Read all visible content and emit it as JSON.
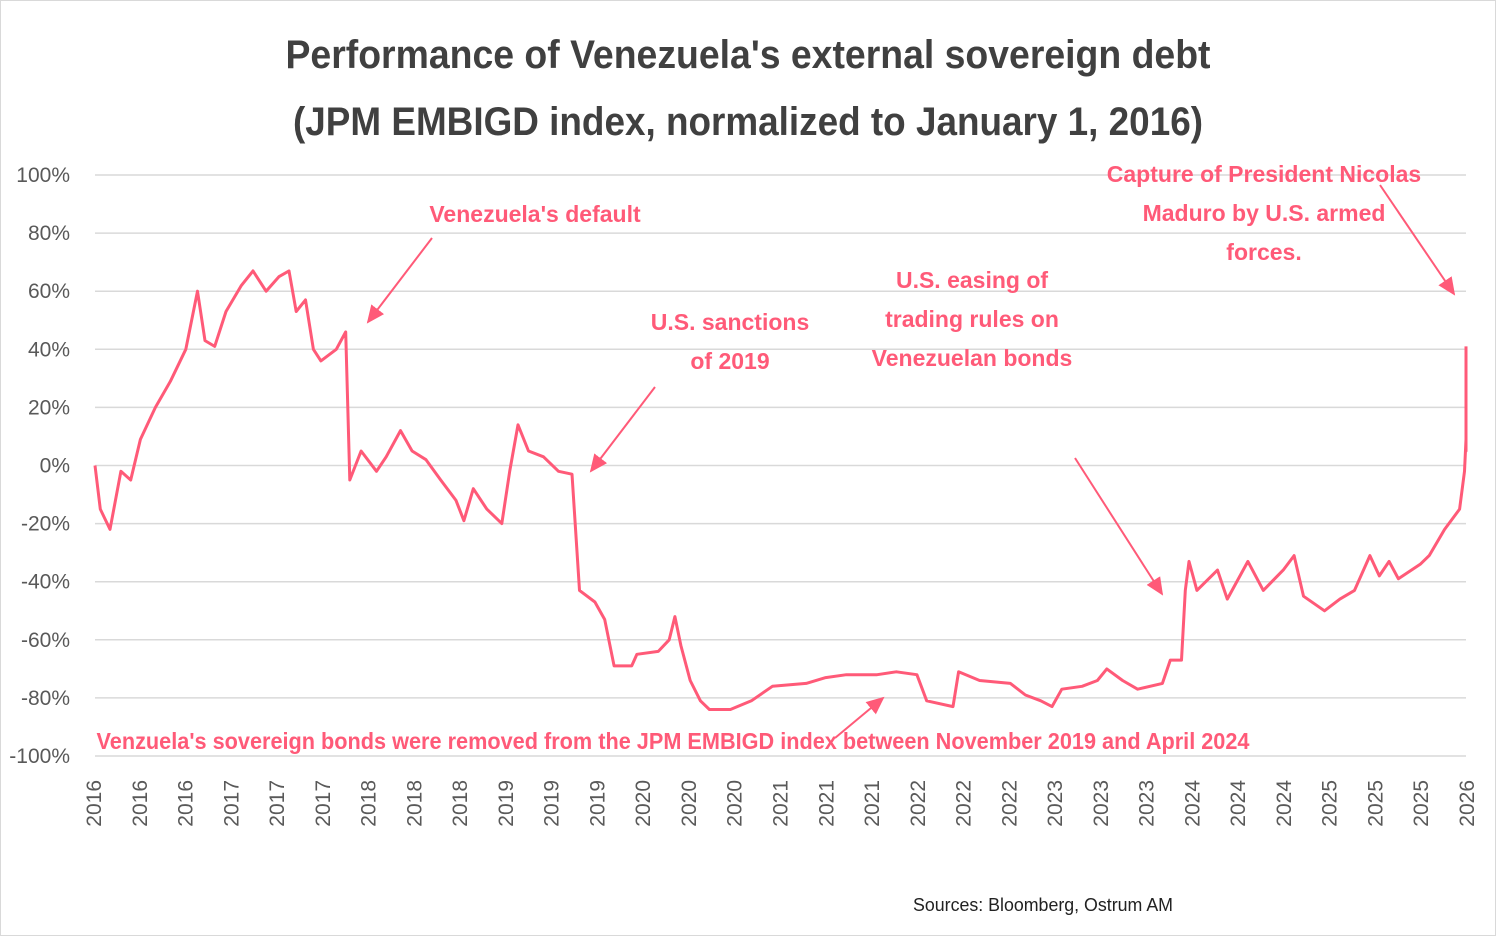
{
  "chart_data": {
    "type": "line",
    "title": "Performance of Venezuela's external sovereign debt",
    "subtitle": "(JPM EMBIGD index, normalized to January 1, 2016)",
    "xlabel": "",
    "ylabel": "",
    "xlim": [
      "2016-01-01",
      "2026-01-01"
    ],
    "ylim": [
      -100,
      100
    ],
    "y_ticks": [
      "100%",
      "80%",
      "60%",
      "40%",
      "20%",
      "0%",
      "-20%",
      "-40%",
      "-60%",
      "-80%",
      "-100%"
    ],
    "x_ticks": [
      "2016",
      "2016",
      "2016",
      "2017",
      "2017",
      "2017",
      "2018",
      "2018",
      "2018",
      "2019",
      "2019",
      "2019",
      "2020",
      "2020",
      "2020",
      "2021",
      "2021",
      "2021",
      "2022",
      "2022",
      "2022",
      "2023",
      "2023",
      "2023",
      "2024",
      "2024",
      "2024",
      "2025",
      "2025",
      "2025",
      "2026"
    ],
    "grid": true,
    "legend": "none",
    "line_color": "#ff5a78",
    "series": [
      {
        "points": [
          [
            "2016-01-01",
            0
          ],
          [
            "2016-01-15",
            -15
          ],
          [
            "2016-02-10",
            -22
          ],
          [
            "2016-03-10",
            -2
          ],
          [
            "2016-04-05",
            -5
          ],
          [
            "2016-05-01",
            9
          ],
          [
            "2016-06-10",
            20
          ],
          [
            "2016-07-20",
            29
          ],
          [
            "2016-08-30",
            40
          ],
          [
            "2016-09-30",
            60
          ],
          [
            "2016-10-20",
            43
          ],
          [
            "2016-11-15",
            41
          ],
          [
            "2016-12-15",
            53
          ],
          [
            "2017-01-25",
            62
          ],
          [
            "2017-02-25",
            67
          ],
          [
            "2017-04-01",
            60
          ],
          [
            "2017-05-05",
            65
          ],
          [
            "2017-06-01",
            67
          ],
          [
            "2017-06-20",
            53
          ],
          [
            "2017-07-15",
            57
          ],
          [
            "2017-08-05",
            40
          ],
          [
            "2017-08-25",
            36
          ],
          [
            "2017-10-05",
            40
          ],
          [
            "2017-10-30",
            46
          ],
          [
            "2017-11-10",
            -5
          ],
          [
            "2017-12-10",
            5
          ],
          [
            "2018-01-20",
            -2
          ],
          [
            "2018-02-15",
            3
          ],
          [
            "2018-03-25",
            12
          ],
          [
            "2018-04-25",
            5
          ],
          [
            "2018-06-01",
            2
          ],
          [
            "2018-07-10",
            -5
          ],
          [
            "2018-08-20",
            -12
          ],
          [
            "2018-09-10",
            -19
          ],
          [
            "2018-10-05",
            -8
          ],
          [
            "2018-11-10",
            -15
          ],
          [
            "2018-12-20",
            -20
          ],
          [
            "2019-01-10",
            -2
          ],
          [
            "2019-02-01",
            14
          ],
          [
            "2019-03-01",
            5
          ],
          [
            "2019-04-10",
            3
          ],
          [
            "2019-05-20",
            -2
          ],
          [
            "2019-06-25",
            -3
          ],
          [
            "2019-07-15",
            -43
          ],
          [
            "2019-08-25",
            -47
          ],
          [
            "2019-09-20",
            -53
          ],
          [
            "2019-10-15",
            -69
          ],
          [
            "2019-12-01",
            -69
          ],
          [
            "2019-12-15",
            -65
          ],
          [
            "2020-02-10",
            -64
          ],
          [
            "2020-03-10",
            -60
          ],
          [
            "2020-03-25",
            -52
          ],
          [
            "2020-04-10",
            -62
          ],
          [
            "2020-05-05",
            -74
          ],
          [
            "2020-06-01",
            -81
          ],
          [
            "2020-06-25",
            -84
          ],
          [
            "2020-08-20",
            -84
          ],
          [
            "2020-10-15",
            -81
          ],
          [
            "2020-12-10",
            -76
          ],
          [
            "2021-03-10",
            -75
          ],
          [
            "2021-05-01",
            -73
          ],
          [
            "2021-06-25",
            -72
          ],
          [
            "2021-09-15",
            -72
          ],
          [
            "2021-11-05",
            -71
          ],
          [
            "2021-12-30",
            -72
          ],
          [
            "2022-01-25",
            -81
          ],
          [
            "2022-04-05",
            -83
          ],
          [
            "2022-04-20",
            -71
          ],
          [
            "2022-06-15",
            -74
          ],
          [
            "2022-09-05",
            -75
          ],
          [
            "2022-10-15",
            -79
          ],
          [
            "2022-11-25",
            -81
          ],
          [
            "2022-12-25",
            -83
          ],
          [
            "2023-01-20",
            -77
          ],
          [
            "2023-03-15",
            -76
          ],
          [
            "2023-04-25",
            -74
          ],
          [
            "2023-05-20",
            -70
          ],
          [
            "2023-07-01",
            -74
          ],
          [
            "2023-08-10",
            -77
          ],
          [
            "2023-10-15",
            -75
          ],
          [
            "2023-11-05",
            -67
          ],
          [
            "2023-12-05",
            -67
          ],
          [
            "2023-12-15",
            -43
          ],
          [
            "2023-12-25",
            -33
          ],
          [
            "2024-01-15",
            -43
          ],
          [
            "2024-03-10",
            -36
          ],
          [
            "2024-04-05",
            -46
          ],
          [
            "2024-05-30",
            -33
          ],
          [
            "2024-07-10",
            -43
          ],
          [
            "2024-09-01",
            -36
          ],
          [
            "2024-09-30",
            -31
          ],
          [
            "2024-10-25",
            -45
          ],
          [
            "2024-12-20",
            -50
          ],
          [
            "2025-01-30",
            -46
          ],
          [
            "2025-03-10",
            -43
          ],
          [
            "2025-04-20",
            -31
          ],
          [
            "2025-05-15",
            -38
          ],
          [
            "2025-06-10",
            -33
          ],
          [
            "2025-07-05",
            -39
          ],
          [
            "2025-09-01",
            -34
          ],
          [
            "2025-09-25",
            -31
          ],
          [
            "2025-11-05",
            -22
          ],
          [
            "2025-12-15",
            -15
          ],
          [
            "2025-12-28",
            -2
          ],
          [
            "2026-01-20",
            9
          ],
          [
            "2026-02-10",
            5
          ],
          [
            "2026-02-20",
            7
          ],
          [
            "2026-03-01",
            41
          ]
        ]
      }
    ],
    "annotations": [
      {
        "text": [
          "Venezuela's default"
        ]
      },
      {
        "text": [
          "U.S. sanctions",
          "of 2019"
        ]
      },
      {
        "text": [
          "U.S. easing of",
          "trading rules on",
          "Venezuelan bonds"
        ]
      },
      {
        "text": [
          "Capture of President Nicolas",
          "Maduro by U.S. armed",
          "forces."
        ]
      },
      {
        "text": [
          "Venzuela's sovereign bonds were removed from the JPM EMBIGD index between November 2019 and April 2024"
        ]
      }
    ],
    "source": "Sources: Bloomberg, Ostrum AM"
  }
}
